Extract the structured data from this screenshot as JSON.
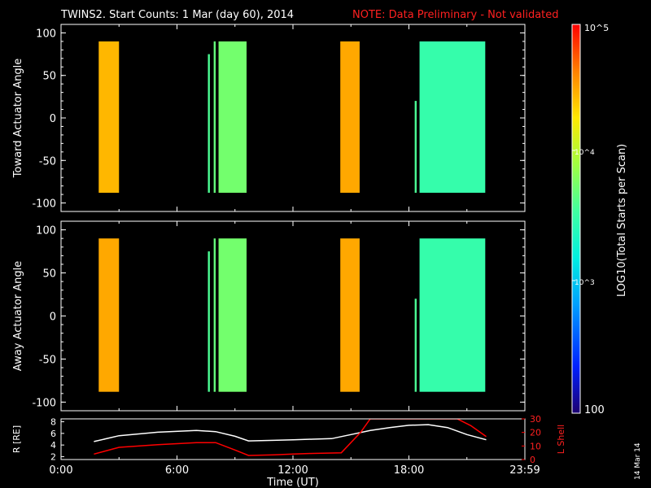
{
  "title": {
    "main": "TWINS2. Start Counts:  1 Mar (day  60), 2014",
    "note": "NOTE: Data Preliminary - Not validated"
  },
  "colors": {
    "background": "#000000",
    "axis": "#ffffff",
    "note": "#ff2020",
    "lshell": "#ff0000",
    "radius": "#ffffff"
  },
  "datestamp": "14 Mar 14",
  "colorbar": {
    "ticks": [
      "10^5",
      "10^4",
      "10^3",
      "100"
    ],
    "label": "LOG10(Total Starts per Scan)",
    "scale": "log",
    "range": [
      100,
      100000
    ],
    "colormap": "rainbow (dark blue → cyan → green → yellow → red)"
  },
  "chart_data": [
    {
      "type": "heatmap",
      "ylabel": "Toward Actuator Angle",
      "ylim": [
        -110,
        110
      ],
      "yticks": [
        "100",
        "50",
        "0",
        "-50",
        "-100"
      ],
      "xlim": [
        0,
        24
      ],
      "x_unit": "hours UT",
      "angle_range": [
        -88,
        90
      ],
      "blocks": [
        {
          "start": 1.95,
          "end": 3.0,
          "level": 4.45,
          "note": "orange/yellow, mixed speckle below 10"
        },
        {
          "start": 7.6,
          "end": 7.7,
          "level": 3.6,
          "angle_range": [
            -88,
            75
          ]
        },
        {
          "start": 7.9,
          "end": 8.0,
          "level": 3.7
        },
        {
          "start": 8.15,
          "end": 9.6,
          "level": 3.75,
          "note": "green"
        },
        {
          "start": 14.45,
          "end": 15.45,
          "level": 4.5,
          "note": "orange"
        },
        {
          "start": 18.3,
          "end": 18.4,
          "level": 3.6,
          "angle_range": [
            -88,
            20
          ]
        },
        {
          "start": 18.55,
          "end": 21.95,
          "level": 3.5,
          "note": "cyan/green with red stripes near 21.2-21.8"
        }
      ]
    },
    {
      "type": "heatmap",
      "ylabel": "Away Actuator Angle",
      "ylim": [
        -110,
        110
      ],
      "yticks": [
        "100",
        "50",
        "0",
        "-50",
        "-100"
      ],
      "xlim": [
        0,
        24
      ],
      "x_unit": "hours UT",
      "angle_range": [
        -88,
        90
      ],
      "blocks": [
        {
          "start": 1.95,
          "end": 3.0,
          "level": 4.5,
          "note": "orange, speckled near top"
        },
        {
          "start": 7.6,
          "end": 7.7,
          "level": 3.6,
          "angle_range": [
            -88,
            75
          ]
        },
        {
          "start": 7.9,
          "end": 8.0,
          "level": 3.7
        },
        {
          "start": 8.15,
          "end": 9.6,
          "level": 3.75,
          "note": "green, orange band at top"
        },
        {
          "start": 14.45,
          "end": 15.45,
          "level": 4.5,
          "note": "orange"
        },
        {
          "start": 18.3,
          "end": 18.4,
          "level": 3.6,
          "angle_range": [
            -88,
            20
          ]
        },
        {
          "start": 18.55,
          "end": 21.95,
          "level": 3.5,
          "note": "cyan/green with red stripes near 21.2-21.8"
        }
      ]
    },
    {
      "type": "line",
      "ylabel": "R [RE]",
      "y2label": "L Shell",
      "ylim": [
        1.5,
        8.5
      ],
      "yticks": [
        "8",
        "6",
        "4",
        "2"
      ],
      "y2lim": [
        0,
        30
      ],
      "y2ticks": [
        "30",
        "20",
        "10",
        "0"
      ],
      "xlabel": "Time (UT)",
      "xlim": [
        0,
        24
      ],
      "xticks": [
        "0:00",
        "6:00",
        "12:00",
        "18:00",
        "23:59"
      ],
      "series": [
        {
          "name": "R [RE]",
          "axis": "left",
          "x": [
            1.7,
            3.0,
            5.0,
            7.0,
            8.0,
            9.0,
            9.7,
            11.0,
            12.0,
            13.0,
            14.0,
            15.0,
            16.0,
            17.0,
            18.0,
            19.0,
            20.0,
            21.0,
            22.0
          ],
          "y": [
            4.6,
            5.6,
            6.2,
            6.5,
            6.3,
            5.5,
            4.7,
            4.8,
            4.9,
            5.0,
            5.1,
            5.8,
            6.5,
            7.0,
            7.4,
            7.5,
            7.0,
            5.8,
            4.9
          ]
        },
        {
          "name": "L Shell",
          "axis": "right",
          "x": [
            1.7,
            3.0,
            5.0,
            7.0,
            8.0,
            9.0,
            9.7,
            11.0,
            12.0,
            13.0,
            14.5,
            15.5,
            16.0,
            20.5,
            21.2,
            22.0
          ],
          "y": [
            4.0,
            9.0,
            11.0,
            12.5,
            12.5,
            7.0,
            3.0,
            3.5,
            4.0,
            4.5,
            5.0,
            20.0,
            30.0,
            30.0,
            25.0,
            17.0
          ]
        }
      ]
    }
  ]
}
